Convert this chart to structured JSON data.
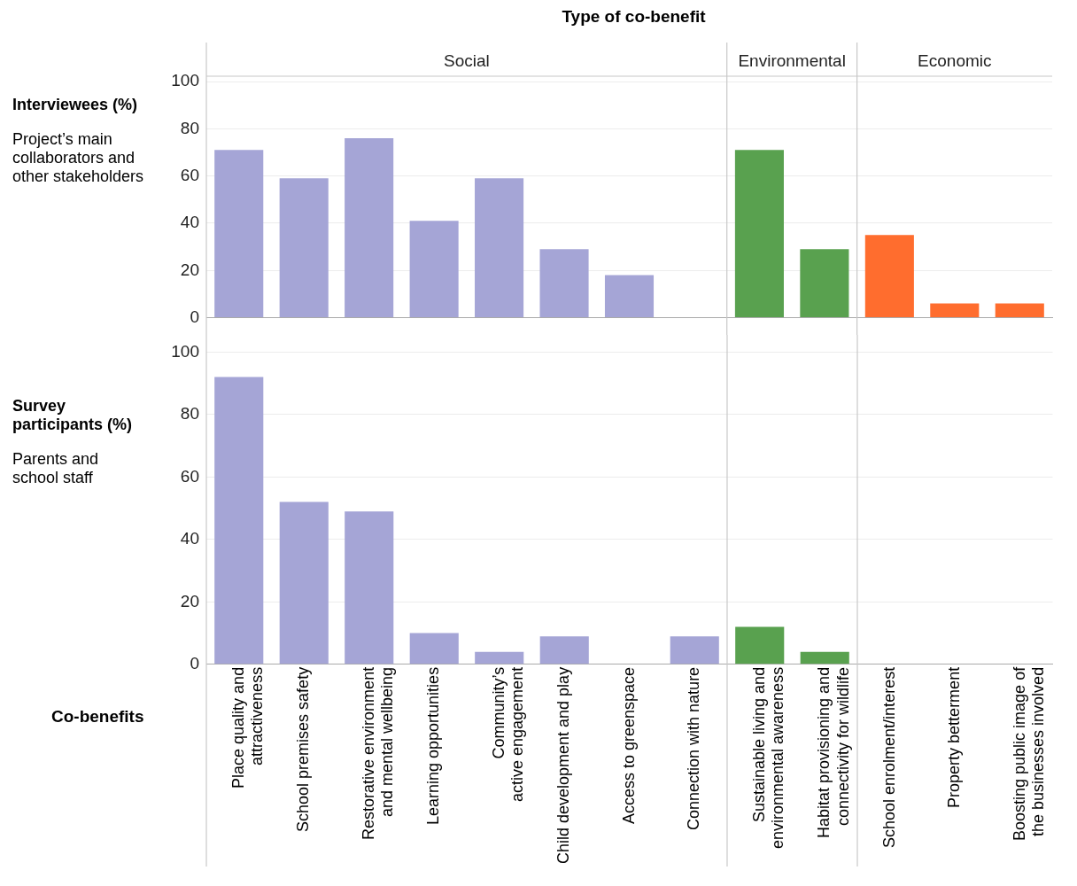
{
  "chart_data": [
    {
      "type": "bar",
      "title": "Type of co-benefit",
      "ylabel": "Interviewees (%)",
      "subtitle": "Project’s main collaborators and other stakeholders",
      "annotations": [
        "Social",
        "Environmental",
        "Economic"
      ],
      "categories": [
        null,
        null,
        null,
        null,
        null,
        null,
        null,
        null,
        null,
        null,
        null,
        null,
        null
      ],
      "values": [
        71,
        59,
        76,
        41,
        59,
        29,
        18,
        0,
        71,
        29,
        35,
        6,
        6
      ],
      "colors": [
        "#a5a5d6",
        "#a5a5d6",
        "#a5a5d6",
        "#a5a5d6",
        "#a5a5d6",
        "#a5a5d6",
        "#a5a5d6",
        "#a5a5d6",
        "#59a14f",
        "#59a14f",
        "#ff6d2e",
        "#ff6d2e",
        "#ff6d2e"
      ],
      "ylim": [
        0,
        100
      ],
      "yticks": [
        0,
        20,
        40,
        60,
        80,
        100
      ],
      "grid": "y",
      "tick_labels": "y"
    },
    {
      "type": "bar",
      "ylabel": "Survey participants (%)",
      "subtitle": "Parents and school staff",
      "xlabel": "Co-benefits",
      "categories": [
        "Place quality and attractiveness",
        "School premises safety",
        "Restorative environment and mental wellbeing",
        "Learning opportunities",
        "Community’s active engagement",
        "Child development and play",
        "Access to greenspace",
        "Connection with nature",
        "Sustainable living and environmental awareness",
        "Habitat provisioning and connectivity for wildlife",
        "School enrolment/interest",
        "Property betterment",
        "Boosting public image of the businesses involved"
      ],
      "values": [
        92,
        52,
        49,
        10,
        4,
        9,
        0,
        9,
        12,
        4,
        0,
        0,
        0
      ],
      "colors": [
        "#a5a5d6",
        "#a5a5d6",
        "#a5a5d6",
        "#a5a5d6",
        "#a5a5d6",
        "#a5a5d6",
        "#a5a5d6",
        "#a5a5d6",
        "#59a14f",
        "#59a14f",
        "#ff6d2e",
        "#ff6d2e",
        "#ff6d2e"
      ],
      "ylim": [
        0,
        100
      ],
      "yticks": [
        0,
        20,
        40,
        60,
        80,
        100
      ],
      "grid": "y"
    }
  ]
}
